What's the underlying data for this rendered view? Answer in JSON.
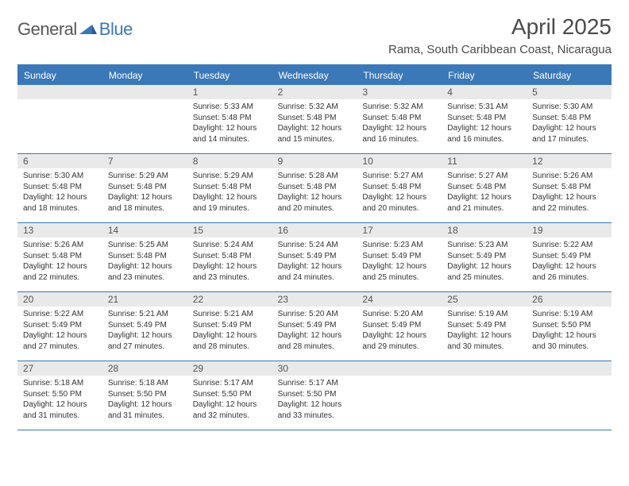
{
  "brand": {
    "word1": "General",
    "word2": "Blue"
  },
  "title": "April 2025",
  "location": "Rama, South Caribbean Coast, Nicaragua",
  "colors": {
    "accent": "#3b78b8",
    "header_bg": "#3b78b8",
    "header_text": "#ffffff",
    "daynum_bg": "#e9e9e9",
    "body_text": "#333333",
    "background": "#ffffff"
  },
  "calendar": {
    "weekdays": [
      "Sunday",
      "Monday",
      "Tuesday",
      "Wednesday",
      "Thursday",
      "Friday",
      "Saturday"
    ],
    "weeks": [
      [
        null,
        null,
        {
          "n": "1",
          "sr": "5:33 AM",
          "ss": "5:48 PM",
          "dl": "12 hours and 14 minutes."
        },
        {
          "n": "2",
          "sr": "5:32 AM",
          "ss": "5:48 PM",
          "dl": "12 hours and 15 minutes."
        },
        {
          "n": "3",
          "sr": "5:32 AM",
          "ss": "5:48 PM",
          "dl": "12 hours and 16 minutes."
        },
        {
          "n": "4",
          "sr": "5:31 AM",
          "ss": "5:48 PM",
          "dl": "12 hours and 16 minutes."
        },
        {
          "n": "5",
          "sr": "5:30 AM",
          "ss": "5:48 PM",
          "dl": "12 hours and 17 minutes."
        }
      ],
      [
        {
          "n": "6",
          "sr": "5:30 AM",
          "ss": "5:48 PM",
          "dl": "12 hours and 18 minutes."
        },
        {
          "n": "7",
          "sr": "5:29 AM",
          "ss": "5:48 PM",
          "dl": "12 hours and 18 minutes."
        },
        {
          "n": "8",
          "sr": "5:29 AM",
          "ss": "5:48 PM",
          "dl": "12 hours and 19 minutes."
        },
        {
          "n": "9",
          "sr": "5:28 AM",
          "ss": "5:48 PM",
          "dl": "12 hours and 20 minutes."
        },
        {
          "n": "10",
          "sr": "5:27 AM",
          "ss": "5:48 PM",
          "dl": "12 hours and 20 minutes."
        },
        {
          "n": "11",
          "sr": "5:27 AM",
          "ss": "5:48 PM",
          "dl": "12 hours and 21 minutes."
        },
        {
          "n": "12",
          "sr": "5:26 AM",
          "ss": "5:48 PM",
          "dl": "12 hours and 22 minutes."
        }
      ],
      [
        {
          "n": "13",
          "sr": "5:26 AM",
          "ss": "5:48 PM",
          "dl": "12 hours and 22 minutes."
        },
        {
          "n": "14",
          "sr": "5:25 AM",
          "ss": "5:48 PM",
          "dl": "12 hours and 23 minutes."
        },
        {
          "n": "15",
          "sr": "5:24 AM",
          "ss": "5:48 PM",
          "dl": "12 hours and 23 minutes."
        },
        {
          "n": "16",
          "sr": "5:24 AM",
          "ss": "5:49 PM",
          "dl": "12 hours and 24 minutes."
        },
        {
          "n": "17",
          "sr": "5:23 AM",
          "ss": "5:49 PM",
          "dl": "12 hours and 25 minutes."
        },
        {
          "n": "18",
          "sr": "5:23 AM",
          "ss": "5:49 PM",
          "dl": "12 hours and 25 minutes."
        },
        {
          "n": "19",
          "sr": "5:22 AM",
          "ss": "5:49 PM",
          "dl": "12 hours and 26 minutes."
        }
      ],
      [
        {
          "n": "20",
          "sr": "5:22 AM",
          "ss": "5:49 PM",
          "dl": "12 hours and 27 minutes."
        },
        {
          "n": "21",
          "sr": "5:21 AM",
          "ss": "5:49 PM",
          "dl": "12 hours and 27 minutes."
        },
        {
          "n": "22",
          "sr": "5:21 AM",
          "ss": "5:49 PM",
          "dl": "12 hours and 28 minutes."
        },
        {
          "n": "23",
          "sr": "5:20 AM",
          "ss": "5:49 PM",
          "dl": "12 hours and 28 minutes."
        },
        {
          "n": "24",
          "sr": "5:20 AM",
          "ss": "5:49 PM",
          "dl": "12 hours and 29 minutes."
        },
        {
          "n": "25",
          "sr": "5:19 AM",
          "ss": "5:49 PM",
          "dl": "12 hours and 30 minutes."
        },
        {
          "n": "26",
          "sr": "5:19 AM",
          "ss": "5:50 PM",
          "dl": "12 hours and 30 minutes."
        }
      ],
      [
        {
          "n": "27",
          "sr": "5:18 AM",
          "ss": "5:50 PM",
          "dl": "12 hours and 31 minutes."
        },
        {
          "n": "28",
          "sr": "5:18 AM",
          "ss": "5:50 PM",
          "dl": "12 hours and 31 minutes."
        },
        {
          "n": "29",
          "sr": "5:17 AM",
          "ss": "5:50 PM",
          "dl": "12 hours and 32 minutes."
        },
        {
          "n": "30",
          "sr": "5:17 AM",
          "ss": "5:50 PM",
          "dl": "12 hours and 33 minutes."
        },
        null,
        null,
        null
      ]
    ],
    "labels": {
      "sunrise": "Sunrise:",
      "sunset": "Sunset:",
      "daylight": "Daylight:"
    }
  }
}
